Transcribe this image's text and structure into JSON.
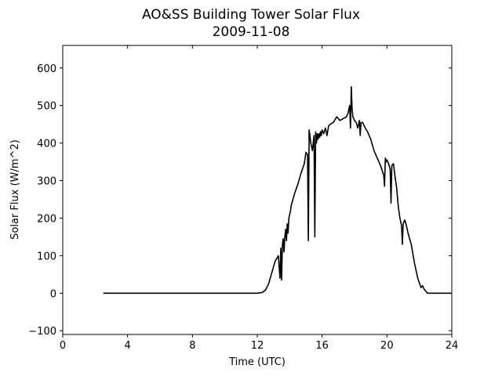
{
  "chart_data": {
    "type": "line",
    "title": "AO&SS Building Tower Solar Flux",
    "subtitle": "2009-11-08",
    "xlabel": "Time (UTC)",
    "ylabel": "Solar Flux (W/m^2)",
    "xlim": [
      0,
      24
    ],
    "ylim": [
      -110,
      660
    ],
    "xticks": [
      0,
      4,
      8,
      12,
      16,
      20,
      24
    ],
    "yticks": [
      -100,
      0,
      100,
      200,
      300,
      400,
      500,
      600
    ],
    "grid": false,
    "line_color": "#000000",
    "series": [
      {
        "x": [
          2.5,
          12.0,
          12.3,
          12.5,
          12.7,
          12.9,
          13.1,
          13.3,
          13.4,
          13.45,
          13.5,
          13.55,
          13.6,
          13.65,
          13.7,
          13.75,
          13.8,
          13.85,
          13.9,
          13.95,
          14.0,
          14.05,
          14.1,
          14.2,
          14.3,
          14.5,
          14.7,
          14.9,
          15.0,
          15.1,
          15.15,
          15.2,
          15.25,
          15.3,
          15.35,
          15.4,
          15.5,
          15.55,
          15.6,
          15.65,
          15.7,
          15.75,
          15.8,
          15.85,
          15.9,
          15.95,
          16.0,
          16.1,
          16.2,
          16.3,
          16.4,
          16.5,
          16.7,
          16.9,
          17.1,
          17.3,
          17.5,
          17.6,
          17.7,
          17.75,
          17.8,
          17.85,
          17.9,
          17.95,
          18.0,
          18.1,
          18.2,
          18.3,
          18.35,
          18.4,
          18.5,
          18.6,
          18.8,
          19.0,
          19.2,
          19.4,
          19.6,
          19.8,
          19.85,
          19.9,
          19.95,
          20.0,
          20.1,
          20.2,
          20.25,
          20.3,
          20.4,
          20.5,
          20.6,
          20.7,
          20.8,
          20.9,
          20.95,
          21.0,
          21.1,
          21.2,
          21.3,
          21.5,
          21.7,
          21.9,
          22.1,
          22.2,
          22.3,
          22.4,
          22.5,
          22.6,
          22.8,
          23.0,
          24.0
        ],
        "y": [
          0,
          0,
          2,
          8,
          25,
          55,
          85,
          100,
          40,
          120,
          35,
          130,
          145,
          110,
          150,
          170,
          140,
          185,
          160,
          200,
          210,
          220,
          235,
          250,
          265,
          290,
          320,
          345,
          375,
          370,
          140,
          435,
          420,
          400,
          390,
          380,
          420,
          150,
          430,
          400,
          425,
          410,
          425,
          415,
          430,
          420,
          435,
          425,
          440,
          420,
          445,
          450,
          455,
          470,
          460,
          465,
          470,
          480,
          500,
          440,
          550,
          490,
          470,
          465,
          460,
          455,
          440,
          460,
          420,
          455,
          455,
          445,
          430,
          410,
          380,
          360,
          340,
          315,
          285,
          360,
          350,
          355,
          345,
          330,
          240,
          340,
          345,
          310,
          280,
          230,
          200,
          180,
          130,
          185,
          195,
          180,
          160,
          130,
          80,
          40,
          15,
          20,
          10,
          5,
          0,
          0,
          0,
          0,
          0
        ]
      }
    ]
  }
}
